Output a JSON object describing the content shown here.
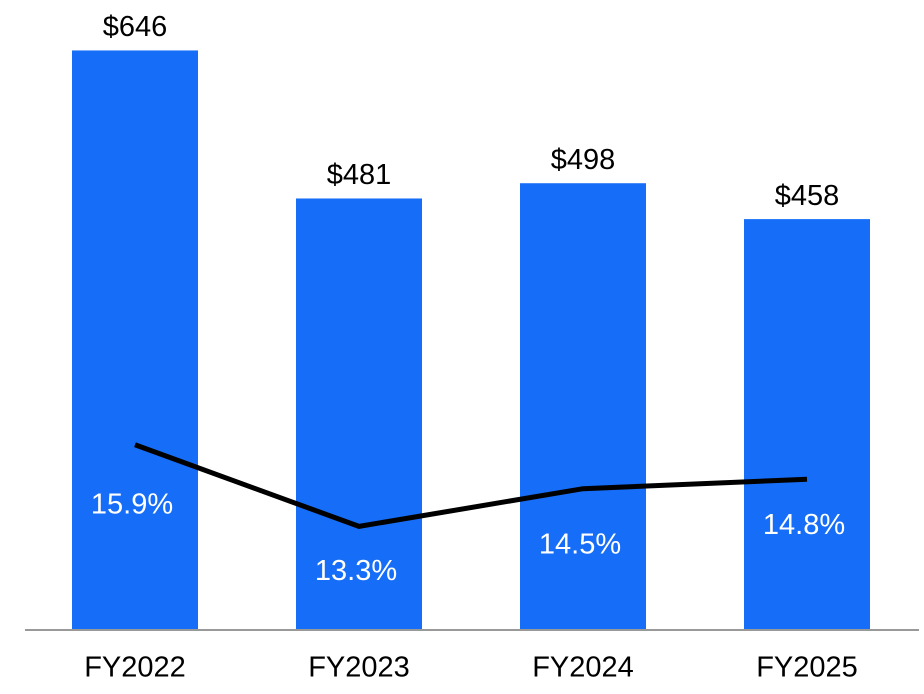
{
  "chart_data": {
    "type": "bar",
    "categories": [
      "FY2022",
      "FY2023",
      "FY2024",
      "FY2025"
    ],
    "series": [
      {
        "type": "bar",
        "color": "#166df7",
        "values": [
          646,
          481,
          498,
          458
        ],
        "value_labels": [
          "$646",
          "$481",
          "$498",
          "$458"
        ]
      },
      {
        "type": "line",
        "axis": "y2",
        "color": "#000000",
        "values": [
          15.9,
          13.3,
          14.5,
          14.8
        ],
        "value_labels": [
          "15.9%",
          "13.3%",
          "14.5%",
          "14.8%"
        ]
      }
    ],
    "ylim": [
      0,
      700
    ],
    "y2lim": [
      10,
      30
    ]
  }
}
